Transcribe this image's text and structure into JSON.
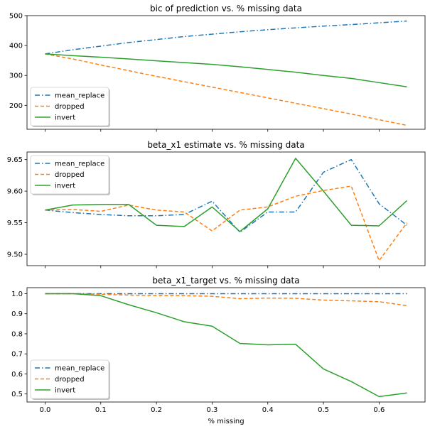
{
  "colors": {
    "mean_replace": "#1f77b4",
    "dropped": "#ff7f0e",
    "invert": "#2ca02c"
  },
  "chart_data": [
    {
      "type": "line",
      "title": "bic of prediction vs. % missing data",
      "xlabel": "",
      "ylabel": "",
      "x": [
        0.0,
        0.05,
        0.1,
        0.15,
        0.2,
        0.25,
        0.3,
        0.35,
        0.4,
        0.45,
        0.5,
        0.55,
        0.6,
        0.65
      ],
      "xlim": [
        -0.0325,
        0.6825
      ],
      "ylim": [
        120,
        500
      ],
      "yticks": [
        200,
        300,
        400,
        500
      ],
      "ytick_labels": [
        "200",
        "300",
        "400",
        "500"
      ],
      "legend": "lower-left",
      "grid": false,
      "series": [
        {
          "name": "mean_replace",
          "style": "dashdot",
          "values": [
            372,
            386,
            398,
            410,
            420,
            430,
            438,
            446,
            453,
            459,
            465,
            470,
            476,
            482
          ]
        },
        {
          "name": "dropped",
          "style": "dashed",
          "values": [
            372,
            355,
            335,
            316,
            297,
            279,
            261,
            243,
            225,
            207,
            189,
            171,
            152,
            133
          ]
        },
        {
          "name": "invert",
          "style": "solid",
          "values": [
            372,
            366,
            361,
            355,
            349,
            343,
            337,
            329,
            320,
            311,
            300,
            290,
            276,
            262
          ]
        }
      ]
    },
    {
      "type": "line",
      "title": "beta_x1 estimate vs. % missing data",
      "xlabel": "",
      "ylabel": "",
      "x": [
        0.0,
        0.05,
        0.1,
        0.15,
        0.2,
        0.25,
        0.3,
        0.35,
        0.4,
        0.45,
        0.5,
        0.55,
        0.6,
        0.65
      ],
      "xlim": [
        -0.0325,
        0.6825
      ],
      "ylim": [
        9.482,
        9.662
      ],
      "yticks": [
        9.5,
        9.55,
        9.6,
        9.65
      ],
      "ytick_labels": [
        "9.50",
        "9.55",
        "9.60",
        "9.65"
      ],
      "legend": "upper-left",
      "grid": false,
      "series": [
        {
          "name": "mean_replace",
          "style": "dashdot",
          "values": [
            9.57,
            9.566,
            9.563,
            9.561,
            9.561,
            9.563,
            9.584,
            9.535,
            9.567,
            9.567,
            9.63,
            9.65,
            9.58,
            9.546
          ]
        },
        {
          "name": "dropped",
          "style": "dashed",
          "values": [
            9.57,
            9.571,
            9.568,
            9.578,
            9.57,
            9.567,
            9.537,
            9.57,
            9.575,
            9.592,
            9.601,
            9.608,
            9.49,
            9.55
          ]
        },
        {
          "name": "invert",
          "style": "solid",
          "values": [
            9.57,
            9.578,
            9.579,
            9.579,
            9.546,
            9.544,
            9.575,
            9.536,
            9.572,
            9.652,
            9.6,
            9.546,
            9.545,
            9.585
          ]
        }
      ]
    },
    {
      "type": "line",
      "title": "beta_x1_target vs. % missing data",
      "xlabel": "% missing",
      "ylabel": "",
      "x": [
        0.0,
        0.05,
        0.1,
        0.15,
        0.2,
        0.25,
        0.3,
        0.35,
        0.4,
        0.45,
        0.5,
        0.55,
        0.6,
        0.65
      ],
      "xlim": [
        -0.0325,
        0.6825
      ],
      "xticks": [
        0.0,
        0.1,
        0.2,
        0.3,
        0.4,
        0.5,
        0.6
      ],
      "xtick_labels": [
        "0.0",
        "0.1",
        "0.2",
        "0.3",
        "0.4",
        "0.5",
        "0.6"
      ],
      "ylim": [
        0.46,
        1.03
      ],
      "yticks": [
        0.5,
        0.6,
        0.7,
        0.8,
        0.9,
        1.0
      ],
      "ytick_labels": [
        "0.5",
        "0.6",
        "0.7",
        "0.8",
        "0.9",
        "1.0"
      ],
      "legend": "lower-left",
      "grid": false,
      "series": [
        {
          "name": "mean_replace",
          "style": "dashdot",
          "values": [
            1.0,
            1.0,
            1.0,
            1.0,
            1.0,
            1.0,
            1.0,
            1.0,
            1.0,
            1.0,
            1.0,
            1.0,
            1.0,
            1.0
          ]
        },
        {
          "name": "dropped",
          "style": "dashed",
          "values": [
            1.0,
            1.0,
            0.997,
            0.993,
            0.99,
            0.99,
            0.987,
            0.975,
            0.978,
            0.977,
            0.968,
            0.964,
            0.96,
            0.94
          ]
        },
        {
          "name": "invert",
          "style": "solid",
          "values": [
            1.0,
            1.0,
            0.99,
            0.945,
            0.905,
            0.86,
            0.838,
            0.752,
            0.745,
            0.748,
            0.625,
            0.562,
            0.487,
            0.505
          ]
        }
      ]
    }
  ]
}
